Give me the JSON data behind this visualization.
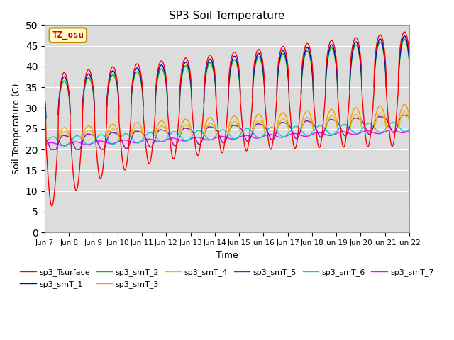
{
  "title": "SP3 Soil Temperature",
  "ylabel": "Soil Temperature (C)",
  "xlabel": "Time",
  "annotation_text": "TZ_osu",
  "annotation_bg": "#FFFFCC",
  "annotation_border": "#CC8800",
  "annotation_text_color": "#CC0000",
  "ylim": [
    0,
    50
  ],
  "yticks": [
    0,
    5,
    10,
    15,
    20,
    25,
    30,
    35,
    40,
    45,
    50
  ],
  "bg_color": "#DCDCDC",
  "fig_color": "#FFFFFF",
  "series_colors": {
    "sp3_Tsurface": "#FF0000",
    "sp3_smT_1": "#0000CC",
    "sp3_smT_2": "#00BB00",
    "sp3_smT_3": "#FF9900",
    "sp3_smT_4": "#CCCC00",
    "sp3_smT_5": "#9900CC",
    "sp3_smT_6": "#00CCCC",
    "sp3_smT_7": "#FF00FF"
  },
  "num_days": 15,
  "start_day": 6,
  "points_per_day": 288
}
